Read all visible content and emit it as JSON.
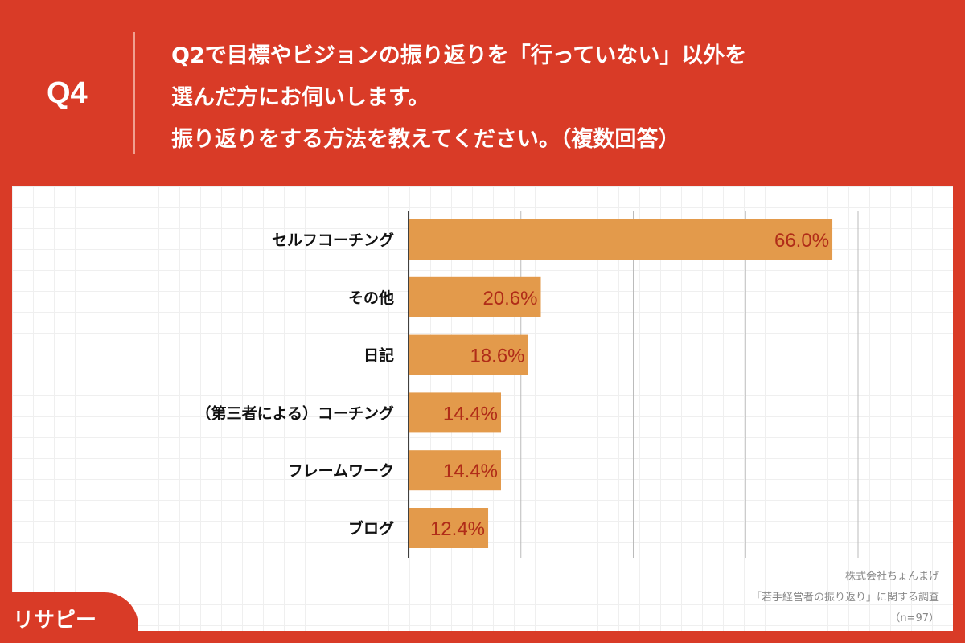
{
  "header": {
    "q_label": "Q4",
    "title_lines": [
      "Q2で目標やビジョンの振り返りを「行っていない」以外を",
      "選んだ方にお伺いします。",
      "振り返りをする方法を教えてください。（複数回答）"
    ]
  },
  "source": {
    "company": "株式会社ちょんまげ",
    "survey": "「若手経営者の振り返り」に関する調査",
    "n": "（n=97）"
  },
  "logo": {
    "text": "リサピー"
  },
  "colors": {
    "background": "#d93b27",
    "bar": "#e39a4b",
    "value_label": "#b02c18"
  },
  "chart_data": {
    "type": "bar",
    "orientation": "horizontal",
    "categories": [
      "セルフコーチング",
      "その他",
      "日記",
      "（第三者による）コーチング",
      "フレームワーク",
      "ブログ"
    ],
    "values": [
      66.0,
      20.6,
      18.6,
      14.4,
      14.4,
      12.4
    ],
    "value_labels": [
      "66.0%",
      "20.6%",
      "18.6%",
      "14.4%",
      "14.4%",
      "12.4%"
    ],
    "xlim": [
      0,
      70
    ],
    "grid": true
  }
}
